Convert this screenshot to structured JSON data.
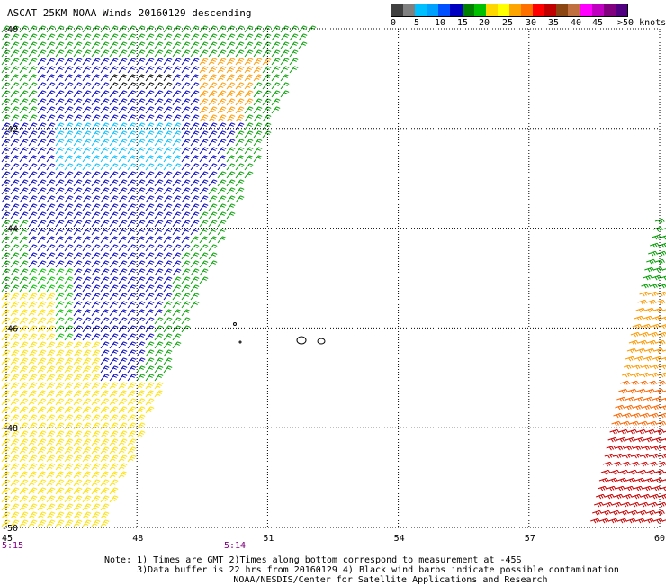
{
  "title": "ASCAT 25KM NOAA Winds 20160129 descending",
  "colorbar": {
    "colors": [
      "#404040",
      "#808080",
      "#00bfff",
      "#00a0ff",
      "#0050ff",
      "#0000c0",
      "#008000",
      "#00c000",
      "#ffd700",
      "#ffff00",
      "#ffa500",
      "#ff7000",
      "#ff0000",
      "#c00000",
      "#8b4513",
      "#c07040",
      "#ff00ff",
      "#c000c0",
      "#800080",
      "#500080"
    ],
    "labels": [
      "0",
      "5",
      "10",
      "15",
      "20",
      "25",
      "30",
      "35",
      "40",
      "45",
      ">50 knots"
    ]
  },
  "map": {
    "lat_range": [
      -50,
      -40
    ],
    "lon_range": [
      45,
      60
    ],
    "lat_ticks": [
      "-40",
      "-42",
      "-44",
      "-46",
      "-48",
      "-50"
    ],
    "lon_ticks": [
      "45",
      "48",
      "51",
      "54",
      "57",
      "60"
    ],
    "times": [
      "5:15",
      "5:14"
    ],
    "wind_regions": [
      {
        "name": "west-swath-north",
        "speed_band": "15-25",
        "color": "#00a000"
      },
      {
        "name": "west-swath-core",
        "speed_band": "10-15",
        "color": "#0000c0"
      },
      {
        "name": "west-swath-cyan",
        "speed_band": "5-10",
        "color": "#00bfff"
      },
      {
        "name": "west-swath-south",
        "speed_band": "20-25",
        "color": "#ffe000"
      },
      {
        "name": "west-swath-ne-orange",
        "speed_band": "25-35",
        "color": "#ff9900"
      },
      {
        "name": "east-swath",
        "speed_band": "25-40",
        "color": "#ff6600"
      }
    ]
  },
  "notes": {
    "line1": "Note: 1) Times are GMT 2)Times along bottom correspond to measurement at -45S",
    "line2": "      3)Data buffer is 22 hrs from 20160129 4) Black wind barbs indicate possible contamination",
    "credit": "NOAA/NESDIS/Center for Satellite Applications and Research"
  }
}
